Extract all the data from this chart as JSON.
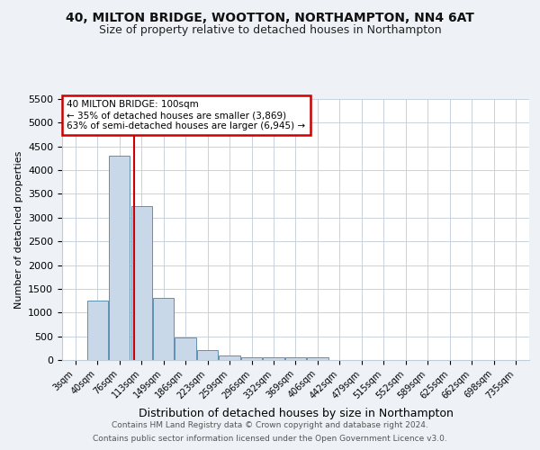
{
  "title1": "40, MILTON BRIDGE, WOOTTON, NORTHAMPTON, NN4 6AT",
  "title2": "Size of property relative to detached houses in Northampton",
  "xlabel": "Distribution of detached houses by size in Northampton",
  "ylabel": "Number of detached properties",
  "bins": [
    "3sqm",
    "40sqm",
    "76sqm",
    "113sqm",
    "149sqm",
    "186sqm",
    "223sqm",
    "259sqm",
    "296sqm",
    "332sqm",
    "369sqm",
    "406sqm",
    "442sqm",
    "479sqm",
    "515sqm",
    "552sqm",
    "589sqm",
    "625sqm",
    "662sqm",
    "698sqm",
    "735sqm"
  ],
  "values": [
    0,
    1250,
    4300,
    3250,
    1300,
    475,
    200,
    90,
    55,
    50,
    50,
    60,
    0,
    0,
    0,
    0,
    0,
    0,
    0,
    0,
    0
  ],
  "bar_color": "#c8d8e8",
  "bar_edgecolor": "#6090b0",
  "marker_color": "#cc0000",
  "annotation_text": "40 MILTON BRIDGE: 100sqm\n← 35% of detached houses are smaller (3,869)\n63% of semi-detached houses are larger (6,945) →",
  "annotation_box_color": "#ffffff",
  "annotation_box_edge": "#cc0000",
  "ylim": [
    0,
    5500
  ],
  "yticks": [
    0,
    500,
    1000,
    1500,
    2000,
    2500,
    3000,
    3500,
    4000,
    4500,
    5000,
    5500
  ],
  "footer1": "Contains HM Land Registry data © Crown copyright and database right 2024.",
  "footer2": "Contains public sector information licensed under the Open Government Licence v3.0.",
  "bg_color": "#eef2f7",
  "plot_bg_color": "#ffffff"
}
